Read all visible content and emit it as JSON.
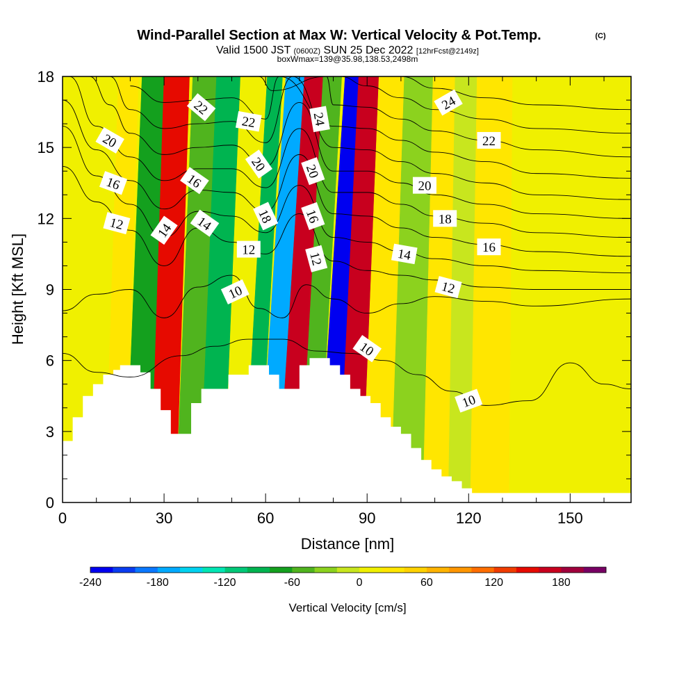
{
  "title": "Wind-Parallel Section at Max W: Vertical Velocity & Pot.Temp.",
  "title_mark": "(C)",
  "subtitle": {
    "part1": "Valid 1500 JST ",
    "part2": "(0600Z)",
    "part3": " SUN 25 Dec 2022 ",
    "part4": "[12hrFcst@2149z]"
  },
  "subtitle2": "boxWmax=139@35.98,138.53,2498m",
  "chart_data": {
    "type": "heatmap",
    "xlabel": "Distance [nm]",
    "ylabel": "Height [Kft MSL]",
    "xlim": [
      0,
      168
    ],
    "ylim": [
      0,
      18
    ],
    "xticks": [
      "0",
      "30",
      "60",
      "90",
      "120",
      "150"
    ],
    "yticks": [
      "0",
      "3",
      "6",
      "9",
      "12",
      "15",
      "18"
    ],
    "grid": false,
    "colorbar": {
      "label": "Vertical Velocity [cm/s]",
      "range": [
        -240,
        220
      ],
      "step": 20,
      "ticks": [
        "-240",
        "-180",
        "-120",
        "-60",
        "0",
        "60",
        "120",
        "180"
      ],
      "colors": [
        "#0000f0",
        "#0a3cf0",
        "#0a78ff",
        "#00aaff",
        "#00d2f0",
        "#00e6b4",
        "#00c878",
        "#00b450",
        "#14a01e",
        "#50b41e",
        "#8cd21e",
        "#c8e61e",
        "#f0f000",
        "#ffe600",
        "#ffd200",
        "#ffb400",
        "#ff9600",
        "#ff6e00",
        "#f03c00",
        "#e60a00",
        "#c8001e",
        "#a0003c",
        "#780064"
      ]
    },
    "velocity_bands": [
      {
        "x": 10,
        "w": 0,
        "shift": 3
      },
      {
        "x": 15,
        "w": 35,
        "shift": 4
      },
      {
        "x": 22,
        "w": -80,
        "shift": 5
      },
      {
        "x": 30,
        "w": 150,
        "shift": 4
      },
      {
        "x": 37,
        "w": -50,
        "shift": 5
      },
      {
        "x": 44,
        "w": -90,
        "shift": 5
      },
      {
        "x": 51,
        "w": 0,
        "shift": 6
      },
      {
        "x": 56,
        "w": -100,
        "shift": 7
      },
      {
        "x": 60,
        "w": -180,
        "shift": 8
      },
      {
        "x": 67,
        "w": 160,
        "shift": 8
      },
      {
        "x": 73,
        "w": -60,
        "shift": 7
      },
      {
        "x": 78,
        "w": -230,
        "shift": 8
      },
      {
        "x": 85,
        "w": 170,
        "shift": 6
      },
      {
        "x": 92,
        "w": 30,
        "shift": 5
      },
      {
        "x": 102,
        "w": -35,
        "shift": 4
      },
      {
        "x": 111,
        "w": 20,
        "shift": 3
      },
      {
        "x": 117,
        "w": -15,
        "shift": 2
      },
      {
        "x": 124,
        "w": 25,
        "shift": 2
      },
      {
        "x": 140,
        "w": 10,
        "shift": 1
      },
      {
        "x": 152,
        "w": 0,
        "shift": 1
      }
    ],
    "terrain": [
      {
        "x": 0,
        "h": 2.6
      },
      {
        "x": 3,
        "h": 3.6
      },
      {
        "x": 6,
        "h": 4.5
      },
      {
        "x": 9,
        "h": 5.0
      },
      {
        "x": 12,
        "h": 5.4
      },
      {
        "x": 15,
        "h": 5.6
      },
      {
        "x": 17,
        "h": 5.8
      },
      {
        "x": 23,
        "h": 5.5
      },
      {
        "x": 26,
        "h": 4.8
      },
      {
        "x": 29,
        "h": 3.9
      },
      {
        "x": 32,
        "h": 2.9
      },
      {
        "x": 38,
        "h": 4.2
      },
      {
        "x": 41,
        "h": 4.8
      },
      {
        "x": 49,
        "h": 5.4
      },
      {
        "x": 55,
        "h": 5.8
      },
      {
        "x": 61,
        "h": 5.4
      },
      {
        "x": 64,
        "h": 4.8
      },
      {
        "x": 70,
        "h": 5.8
      },
      {
        "x": 73,
        "h": 6.1
      },
      {
        "x": 79,
        "h": 5.8
      },
      {
        "x": 82,
        "h": 5.4
      },
      {
        "x": 85,
        "h": 4.8
      },
      {
        "x": 88,
        "h": 4.5
      },
      {
        "x": 91,
        "h": 4.2
      },
      {
        "x": 94,
        "h": 3.6
      },
      {
        "x": 97,
        "h": 3.2
      },
      {
        "x": 100,
        "h": 2.9
      },
      {
        "x": 103,
        "h": 2.3
      },
      {
        "x": 106,
        "h": 1.8
      },
      {
        "x": 109,
        "h": 1.4
      },
      {
        "x": 112,
        "h": 1.1
      },
      {
        "x": 115,
        "h": 0.9
      },
      {
        "x": 118,
        "h": 0.6
      },
      {
        "x": 121,
        "h": 0.4
      },
      {
        "x": 168,
        "h": 0.4
      }
    ],
    "isentropes": [
      {
        "theta": 10,
        "points": [
          [
            0,
            6.3
          ],
          [
            10,
            5.5
          ],
          [
            20,
            5.3
          ],
          [
            35,
            6.2
          ],
          [
            45,
            6.6
          ],
          [
            55,
            6.9
          ],
          [
            65,
            6.9
          ],
          [
            75,
            6.4
          ],
          [
            85,
            6.3
          ],
          [
            95,
            6.0
          ],
          [
            105,
            5.4
          ],
          [
            115,
            4.7
          ],
          [
            125,
            4.1
          ],
          [
            138,
            4.3
          ],
          [
            150,
            5.9
          ],
          [
            160,
            5.0
          ],
          [
            168,
            4.8
          ]
        ]
      },
      {
        "theta": 10,
        "points": [
          [
            0,
            8.1
          ],
          [
            10,
            8.8
          ],
          [
            20,
            9.0
          ],
          [
            30,
            7.8
          ],
          [
            40,
            9.1
          ],
          [
            50,
            9.6
          ],
          [
            58,
            8.2
          ],
          [
            65,
            7.8
          ],
          [
            72,
            9.2
          ],
          [
            80,
            8.6
          ],
          [
            90,
            8.0
          ],
          [
            100,
            8.4
          ],
          [
            110,
            8.7
          ],
          [
            125,
            8.5
          ],
          [
            140,
            8.3
          ],
          [
            168,
            8.6
          ]
        ]
      },
      {
        "theta": 12,
        "points": [
          [
            0,
            14.2
          ],
          [
            10,
            12.7
          ],
          [
            20,
            11.5
          ],
          [
            30,
            10.0
          ],
          [
            40,
            11.6
          ],
          [
            50,
            11.0
          ],
          [
            60,
            10.5
          ],
          [
            70,
            12.2
          ],
          [
            80,
            10.2
          ],
          [
            90,
            9.8
          ],
          [
            100,
            9.6
          ],
          [
            110,
            9.4
          ],
          [
            125,
            9.1
          ],
          [
            140,
            9.0
          ],
          [
            168,
            9.0
          ]
        ]
      },
      {
        "theta": 14,
        "points": [
          [
            0,
            15.9
          ],
          [
            10,
            13.8
          ],
          [
            20,
            12.6
          ],
          [
            30,
            11.2
          ],
          [
            40,
            12.3
          ],
          [
            50,
            12.1
          ],
          [
            60,
            11.4
          ],
          [
            70,
            13.4
          ],
          [
            80,
            11.2
          ],
          [
            90,
            11.0
          ],
          [
            100,
            10.6
          ],
          [
            110,
            10.3
          ],
          [
            125,
            10.0
          ],
          [
            140,
            9.8
          ],
          [
            168,
            9.7
          ]
        ]
      },
      {
        "theta": 16,
        "points": [
          [
            0,
            17.0
          ],
          [
            10,
            14.9
          ],
          [
            20,
            13.6
          ],
          [
            30,
            12.4
          ],
          [
            40,
            13.2
          ],
          [
            50,
            13.1
          ],
          [
            60,
            12.3
          ],
          [
            70,
            14.7
          ],
          [
            80,
            12.2
          ],
          [
            90,
            12.1
          ],
          [
            100,
            11.6
          ],
          [
            110,
            11.2
          ],
          [
            125,
            10.9
          ],
          [
            140,
            10.6
          ],
          [
            168,
            10.4
          ]
        ]
      },
      {
        "theta": 18,
        "points": [
          [
            2,
            18.0
          ],
          [
            10,
            15.9
          ],
          [
            20,
            14.6
          ],
          [
            30,
            13.6
          ],
          [
            40,
            14.1
          ],
          [
            50,
            14.1
          ],
          [
            60,
            13.3
          ],
          [
            70,
            15.8
          ],
          [
            80,
            13.1
          ],
          [
            90,
            13.1
          ],
          [
            100,
            12.6
          ],
          [
            110,
            12.1
          ],
          [
            125,
            11.8
          ],
          [
            140,
            11.4
          ],
          [
            168,
            11.2
          ]
        ]
      },
      {
        "theta": 20,
        "points": [
          [
            8,
            18.0
          ],
          [
            14,
            16.8
          ],
          [
            20,
            15.6
          ],
          [
            30,
            14.7
          ],
          [
            40,
            15.0
          ],
          [
            50,
            15.1
          ],
          [
            60,
            14.2
          ],
          [
            70,
            16.9
          ],
          [
            80,
            14.0
          ],
          [
            90,
            14.0
          ],
          [
            100,
            13.5
          ],
          [
            110,
            13.0
          ],
          [
            125,
            12.6
          ],
          [
            140,
            12.2
          ],
          [
            168,
            12.0
          ]
        ]
      },
      {
        "theta": 22,
        "points": [
          [
            14,
            18.0
          ],
          [
            20,
            16.6
          ],
          [
            30,
            15.8
          ],
          [
            40,
            16.0
          ],
          [
            50,
            16.1
          ],
          [
            60,
            15.2
          ],
          [
            68,
            18.0
          ],
          [
            80,
            15.0
          ],
          [
            90,
            14.9
          ],
          [
            100,
            14.4
          ],
          [
            110,
            13.9
          ],
          [
            125,
            13.5
          ],
          [
            140,
            13.0
          ],
          [
            168,
            12.8
          ]
        ]
      },
      {
        "theta": 24,
        "points": [
          [
            20,
            17.6
          ],
          [
            30,
            16.9
          ],
          [
            40,
            17.0
          ],
          [
            50,
            17.1
          ],
          [
            60,
            16.2
          ],
          [
            64,
            18.0
          ],
          [
            80,
            15.9
          ],
          [
            90,
            15.8
          ],
          [
            100,
            15.3
          ],
          [
            110,
            14.8
          ],
          [
            125,
            14.4
          ],
          [
            140,
            13.9
          ],
          [
            168,
            13.7
          ]
        ]
      },
      {
        "theta": 24,
        "points": [
          [
            28,
            18.0
          ],
          [
            40,
            18.0
          ],
          [
            58,
            18.0
          ],
          [
            62,
            17.4
          ],
          [
            78,
            18.0
          ],
          [
            80,
            16.8
          ],
          [
            90,
            16.7
          ],
          [
            100,
            16.2
          ],
          [
            110,
            15.7
          ],
          [
            125,
            15.3
          ],
          [
            140,
            14.9
          ],
          [
            168,
            14.6
          ]
        ]
      },
      {
        "theta": 24,
        "points": [
          [
            82,
            18.0
          ],
          [
            90,
            17.6
          ],
          [
            100,
            17.1
          ],
          [
            110,
            16.6
          ],
          [
            125,
            16.2
          ],
          [
            140,
            15.8
          ],
          [
            168,
            15.6
          ]
        ]
      },
      {
        "theta": 24,
        "points": [
          [
            100,
            18.0
          ],
          [
            110,
            17.5
          ],
          [
            125,
            17.1
          ],
          [
            140,
            16.8
          ],
          [
            168,
            16.6
          ]
        ]
      }
    ],
    "contour_labels": [
      {
        "text": "22",
        "x": 41,
        "y": 16.7,
        "rot": 40
      },
      {
        "text": "22",
        "x": 55,
        "y": 16.1,
        "rot": 10
      },
      {
        "text": "24",
        "x": 76,
        "y": 16.2,
        "rot": 80
      },
      {
        "text": "24",
        "x": 114,
        "y": 16.9,
        "rot": -30
      },
      {
        "text": "22",
        "x": 126,
        "y": 15.3,
        "rot": 0
      },
      {
        "text": "20",
        "x": 14,
        "y": 15.3,
        "rot": 30
      },
      {
        "text": "20",
        "x": 58,
        "y": 14.3,
        "rot": 55
      },
      {
        "text": "20",
        "x": 74,
        "y": 14.0,
        "rot": 70
      },
      {
        "text": "20",
        "x": 107,
        "y": 13.4,
        "rot": 0
      },
      {
        "text": "16",
        "x": 15,
        "y": 13.5,
        "rot": 20
      },
      {
        "text": "16",
        "x": 39,
        "y": 13.6,
        "rot": 35
      },
      {
        "text": "16",
        "x": 74,
        "y": 12.1,
        "rot": 70
      },
      {
        "text": "18",
        "x": 60,
        "y": 12.1,
        "rot": 65
      },
      {
        "text": "18",
        "x": 113,
        "y": 12.0,
        "rot": 0
      },
      {
        "text": "16",
        "x": 126,
        "y": 10.8,
        "rot": 0
      },
      {
        "text": "12",
        "x": 16,
        "y": 11.8,
        "rot": 15
      },
      {
        "text": "14",
        "x": 30,
        "y": 11.5,
        "rot": -55
      },
      {
        "text": "14",
        "x": 42,
        "y": 11.8,
        "rot": 35
      },
      {
        "text": "12",
        "x": 55,
        "y": 10.7,
        "rot": 0
      },
      {
        "text": "12",
        "x": 75,
        "y": 10.3,
        "rot": 75
      },
      {
        "text": "14",
        "x": 101,
        "y": 10.5,
        "rot": 10
      },
      {
        "text": "12",
        "x": 114,
        "y": 9.1,
        "rot": 15
      },
      {
        "text": "10",
        "x": 51,
        "y": 8.9,
        "rot": -25
      },
      {
        "text": "10",
        "x": 90,
        "y": 6.5,
        "rot": 35
      },
      {
        "text": "10",
        "x": 120,
        "y": 4.3,
        "rot": -20
      }
    ]
  }
}
